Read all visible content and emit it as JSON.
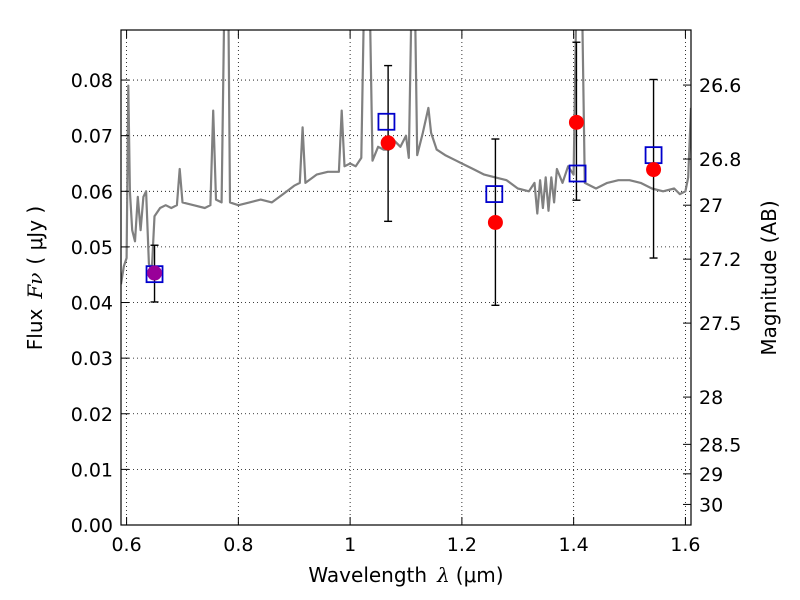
{
  "chart_data": {
    "type": "scatter",
    "xlabel": "Wavelength",
    "xlabel_symbol": "λ",
    "xlabel_unit": "(μm)",
    "ylabel": "Flux",
    "ylabel_symbol": "Fν",
    "ylabel_unit": "( μJy )",
    "ylabel_right": "Magnitude (AB)",
    "xlim": [
      0.59,
      1.61
    ],
    "ylim": [
      0.0,
      0.089
    ],
    "grid": true,
    "x_ticks": [
      {
        "value": 0.6,
        "label": "0.6"
      },
      {
        "value": 0.8,
        "label": "0.8"
      },
      {
        "value": 1.0,
        "label": "1"
      },
      {
        "value": 1.2,
        "label": "1.2"
      },
      {
        "value": 1.4,
        "label": "1.4"
      },
      {
        "value": 1.6,
        "label": "1.6"
      }
    ],
    "y_ticks": [
      {
        "value": 0.0,
        "label": "0.00"
      },
      {
        "value": 0.01,
        "label": "0.01"
      },
      {
        "value": 0.02,
        "label": "0.02"
      },
      {
        "value": 0.03,
        "label": "0.03"
      },
      {
        "value": 0.04,
        "label": "0.04"
      },
      {
        "value": 0.05,
        "label": "0.05"
      },
      {
        "value": 0.06,
        "label": "0.06"
      },
      {
        "value": 0.07,
        "label": "0.07"
      },
      {
        "value": 0.08,
        "label": "0.08"
      }
    ],
    "right_ticks": [
      {
        "flux": 0.0791,
        "label": "26.6"
      },
      {
        "flux": 0.0658,
        "label": "26.8"
      },
      {
        "flux": 0.0575,
        "label": "27"
      },
      {
        "flux": 0.0478,
        "label": "27.2"
      },
      {
        "flux": 0.0363,
        "label": "27.5"
      },
      {
        "flux": 0.023,
        "label": "28"
      },
      {
        "flux": 0.0145,
        "label": "28.5"
      },
      {
        "flux": 0.0092,
        "label": "29"
      },
      {
        "flux": 0.0037,
        "label": "30"
      }
    ],
    "model_spectrum": {
      "color": "#808080",
      "points": [
        [
          0.59,
          0.0433
        ],
        [
          0.595,
          0.0465
        ],
        [
          0.6,
          0.048
        ],
        [
          0.603,
          0.079
        ],
        [
          0.606,
          0.06
        ],
        [
          0.61,
          0.053
        ],
        [
          0.615,
          0.051
        ],
        [
          0.62,
          0.059
        ],
        [
          0.625,
          0.053
        ],
        [
          0.63,
          0.059
        ],
        [
          0.635,
          0.06
        ],
        [
          0.64,
          0.047
        ],
        [
          0.645,
          0.0455
        ],
        [
          0.65,
          0.0555
        ],
        [
          0.66,
          0.057
        ],
        [
          0.67,
          0.0575
        ],
        [
          0.68,
          0.057
        ],
        [
          0.69,
          0.0575
        ],
        [
          0.695,
          0.064
        ],
        [
          0.7,
          0.058
        ],
        [
          0.72,
          0.0575
        ],
        [
          0.74,
          0.057
        ],
        [
          0.75,
          0.0575
        ],
        [
          0.755,
          0.0745
        ],
        [
          0.76,
          0.0585
        ],
        [
          0.77,
          0.058
        ],
        [
          0.775,
          0.095
        ],
        [
          0.782,
          0.095
        ],
        [
          0.785,
          0.058
        ],
        [
          0.8,
          0.0575
        ],
        [
          0.82,
          0.058
        ],
        [
          0.84,
          0.0585
        ],
        [
          0.86,
          0.058
        ],
        [
          0.88,
          0.0595
        ],
        [
          0.9,
          0.061
        ],
        [
          0.91,
          0.0615
        ],
        [
          0.915,
          0.0715
        ],
        [
          0.92,
          0.0615
        ],
        [
          0.94,
          0.063
        ],
        [
          0.96,
          0.0635
        ],
        [
          0.98,
          0.0635
        ],
        [
          0.985,
          0.0745
        ],
        [
          0.99,
          0.0645
        ],
        [
          1.0,
          0.065
        ],
        [
          1.01,
          0.0645
        ],
        [
          1.02,
          0.066
        ],
        [
          1.025,
          0.095
        ],
        [
          1.035,
          0.095
        ],
        [
          1.04,
          0.0655
        ],
        [
          1.05,
          0.068
        ],
        [
          1.06,
          0.0675
        ],
        [
          1.07,
          0.0675
        ],
        [
          1.08,
          0.069
        ],
        [
          1.09,
          0.068
        ],
        [
          1.1,
          0.07
        ],
        [
          1.105,
          0.066
        ],
        [
          1.11,
          0.095
        ],
        [
          1.116,
          0.095
        ],
        [
          1.12,
          0.0665
        ],
        [
          1.13,
          0.0705
        ],
        [
          1.14,
          0.075
        ],
        [
          1.145,
          0.0705
        ],
        [
          1.155,
          0.0675
        ],
        [
          1.17,
          0.0665
        ],
        [
          1.19,
          0.0655
        ],
        [
          1.2,
          0.065
        ],
        [
          1.22,
          0.064
        ],
        [
          1.24,
          0.063
        ],
        [
          1.26,
          0.0625
        ],
        [
          1.28,
          0.062
        ],
        [
          1.3,
          0.0605
        ],
        [
          1.32,
          0.06
        ],
        [
          1.33,
          0.0615
        ],
        [
          1.335,
          0.056
        ],
        [
          1.34,
          0.062
        ],
        [
          1.345,
          0.057
        ],
        [
          1.35,
          0.0625
        ],
        [
          1.355,
          0.0565
        ],
        [
          1.36,
          0.0625
        ],
        [
          1.365,
          0.058
        ],
        [
          1.37,
          0.064
        ],
        [
          1.38,
          0.0615
        ],
        [
          1.39,
          0.0645
        ],
        [
          1.4,
          0.063
        ],
        [
          1.405,
          0.095
        ],
        [
          1.415,
          0.095
        ],
        [
          1.42,
          0.0615
        ],
        [
          1.44,
          0.0605
        ],
        [
          1.46,
          0.0615
        ],
        [
          1.48,
          0.062
        ],
        [
          1.5,
          0.062
        ],
        [
          1.52,
          0.0615
        ],
        [
          1.54,
          0.0605
        ],
        [
          1.56,
          0.06
        ],
        [
          1.58,
          0.0605
        ],
        [
          1.59,
          0.0595
        ],
        [
          1.6,
          0.06
        ],
        [
          1.605,
          0.0625
        ],
        [
          1.61,
          0.075
        ]
      ]
    },
    "model_photometry": {
      "marker": "open-square",
      "color": "#0000cc",
      "points": [
        {
          "x": 0.65,
          "y": 0.0451
        },
        {
          "x": 1.065,
          "y": 0.0725
        },
        {
          "x": 1.258,
          "y": 0.0595
        },
        {
          "x": 1.407,
          "y": 0.0632
        },
        {
          "x": 1.543,
          "y": 0.0665
        }
      ]
    },
    "observed": {
      "marker": "filled-circle",
      "color": "#ff0000",
      "blend_color": "#990099",
      "points": [
        {
          "x": 0.65,
          "y": 0.0453,
          "err_low": 0.0401,
          "err_high": 0.0503
        },
        {
          "x": 1.068,
          "y": 0.0687,
          "err_low": 0.0546,
          "err_high": 0.0826
        },
        {
          "x": 1.26,
          "y": 0.0544,
          "err_low": 0.0395,
          "err_high": 0.0694
        },
        {
          "x": 1.405,
          "y": 0.0724,
          "err_low": 0.0584,
          "err_high": 0.0868
        },
        {
          "x": 1.543,
          "y": 0.0639,
          "err_low": 0.048,
          "err_high": 0.0801
        }
      ]
    }
  }
}
